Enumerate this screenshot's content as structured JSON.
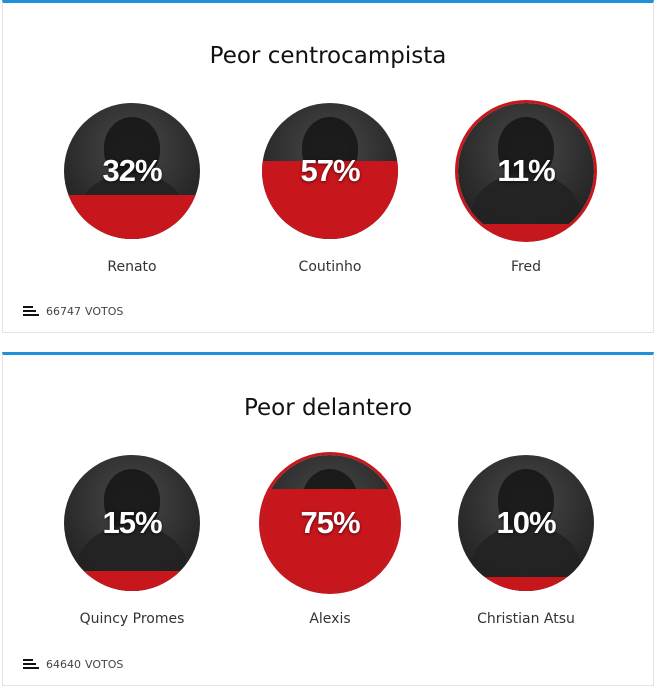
{
  "accent_color": "#1e8fd8",
  "fill_color": "#c8161d",
  "polls": [
    {
      "title": "Peor centrocampista",
      "options": [
        {
          "name": "Renato",
          "percent_label": "32%",
          "percent": 32,
          "selected": false
        },
        {
          "name": "Coutinho",
          "percent_label": "57%",
          "percent": 57,
          "selected": false
        },
        {
          "name": "Fred",
          "percent_label": "11%",
          "percent": 11,
          "selected": true
        }
      ],
      "votes_count": "66747",
      "votes_label": "VOTOS"
    },
    {
      "title": "Peor delantero",
      "options": [
        {
          "name": "Quincy Promes",
          "percent_label": "15%",
          "percent": 15,
          "selected": false
        },
        {
          "name": "Alexis",
          "percent_label": "75%",
          "percent": 75,
          "selected": true
        },
        {
          "name": "Christian Atsu",
          "percent_label": "10%",
          "percent": 10,
          "selected": false
        }
      ],
      "votes_count": "64640",
      "votes_label": "VOTOS"
    }
  ]
}
